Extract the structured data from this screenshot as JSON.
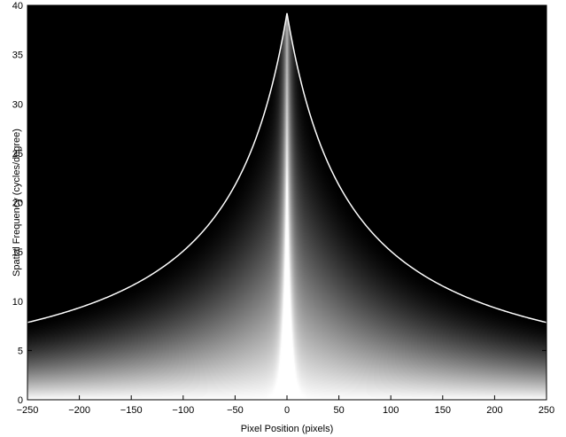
{
  "chart_data": {
    "type": "heatmap",
    "xlabel": "Pixel Position (pixels)",
    "ylabel": "Spatial Frequency (cycles/degree)",
    "xlim": [
      -250,
      250
    ],
    "ylim": [
      0,
      40
    ],
    "x_ticks": [
      -250,
      -200,
      -150,
      -100,
      -50,
      0,
      50,
      100,
      150,
      200,
      250
    ],
    "y_ticks": [
      0,
      5,
      10,
      15,
      20,
      25,
      30,
      35,
      40
    ],
    "x_tick_labels": [
      "−250",
      "−200",
      "−150",
      "−100",
      "−50",
      "0",
      "50",
      "100",
      "150",
      "200",
      "250"
    ],
    "y_tick_labels": [
      "0",
      "5",
      "10",
      "15",
      "20",
      "25",
      "30",
      "35",
      "40"
    ],
    "colormap": "grayscale",
    "background_color": "#000000",
    "cutoff_line_color": "#ffffff",
    "cutoff_curve": {
      "x": [
        -250,
        -200,
        -150,
        -100,
        -75,
        -50,
        -25,
        -10,
        0,
        10,
        25,
        50,
        75,
        100,
        150,
        200,
        250
      ],
      "y": [
        7.8,
        9.3,
        11.5,
        15.0,
        17.6,
        21.3,
        27.0,
        33.0,
        39.2,
        33.0,
        27.0,
        21.3,
        17.6,
        15.0,
        11.5,
        9.3,
        7.8
      ]
    },
    "grid": false
  }
}
